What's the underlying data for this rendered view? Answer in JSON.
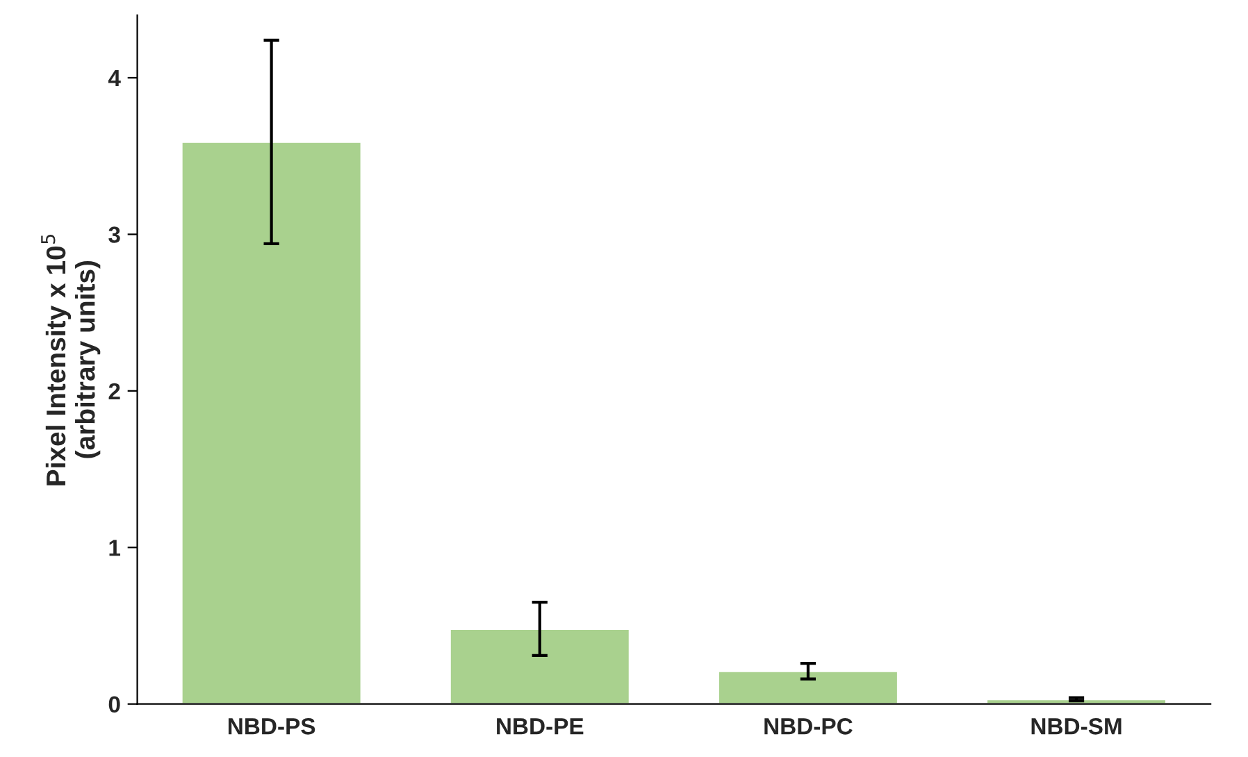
{
  "chart_data": {
    "type": "bar",
    "ylabel": "Pixel Intensity x 10$^{5}$\n(arbitrary units)",
    "categories": [
      "NBD-PS",
      "NBD-PE",
      "NBD-PC",
      "NBD-SM"
    ],
    "values": [
      3.59,
      0.48,
      0.21,
      0.03
    ],
    "errors": [
      0.65,
      0.17,
      0.05,
      0.01
    ],
    "color": "#a9d18e",
    "ylim": [
      0,
      4.4
    ],
    "yticks": [
      0,
      1,
      2,
      3,
      4
    ],
    "grid": false
  }
}
